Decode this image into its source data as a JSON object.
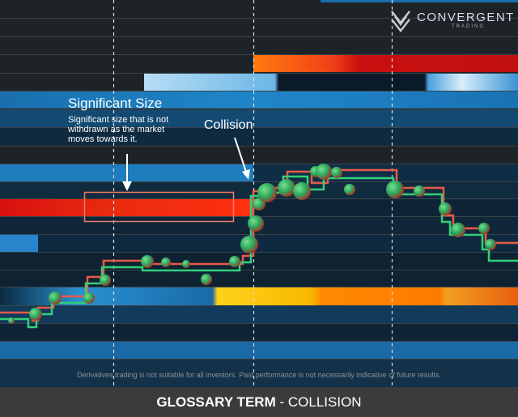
{
  "logo": {
    "name": "CONVERGENT",
    "tagline": "TRADING"
  },
  "annotations": [
    {
      "title": "Significant Size",
      "text": "Significant size that is not withdrawn as the market moves towards it."
    },
    {
      "title": "Collision"
    }
  ],
  "disclaimer": "Derivatives trading is not suitable for all investors. Past performance is not necessarily indicative of future results.",
  "footer": {
    "term_label": "GLOSSARY TERM",
    "separator": "-",
    "term": "COLLISION"
  }
}
